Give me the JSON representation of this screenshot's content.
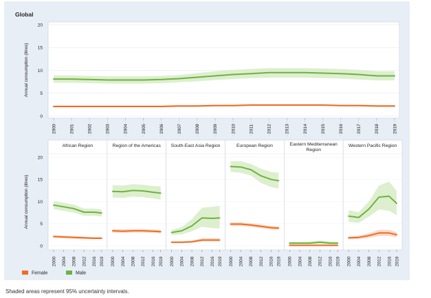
{
  "note": "Shaded areas represent 95% uncertainty intervals.",
  "legend": [
    {
      "label": "Female",
      "color": "#f26b22"
    },
    {
      "label": "Male",
      "color": "#6cb33f"
    }
  ],
  "colors": {
    "female": "#f26b22",
    "male": "#6cb33f",
    "female_band": "#fbd6c2",
    "male_band": "#d9edc9",
    "panel_bg": "#e8eef6",
    "plot_bg": "#ffffff"
  },
  "chart_data": [
    {
      "type": "line",
      "title": "Global",
      "ylabel": "Annual consumption (litres)",
      "ylim": [
        0,
        20
      ],
      "yticks": [
        0,
        5,
        10,
        15,
        20
      ],
      "x": [
        2000,
        2001,
        2002,
        2003,
        2004,
        2005,
        2006,
        2007,
        2008,
        2009,
        2010,
        2011,
        2012,
        2013,
        2014,
        2015,
        2016,
        2017,
        2018,
        2019
      ],
      "xticks": [
        2000,
        2001,
        2002,
        2003,
        2004,
        2005,
        2006,
        2007,
        2008,
        2009,
        2010,
        2011,
        2012,
        2013,
        2014,
        2015,
        2016,
        2017,
        2018,
        2019
      ],
      "series": [
        {
          "name": "Female",
          "values": [
            2.1,
            2.1,
            2.1,
            2.1,
            2.1,
            2.1,
            2.1,
            2.2,
            2.2,
            2.3,
            2.3,
            2.4,
            2.4,
            2.4,
            2.4,
            2.4,
            2.3,
            2.3,
            2.2,
            2.2
          ],
          "lower": [
            1.9,
            1.9,
            1.9,
            1.9,
            1.9,
            1.9,
            1.9,
            2.0,
            2.0,
            2.1,
            2.1,
            2.2,
            2.2,
            2.2,
            2.2,
            2.2,
            2.1,
            2.1,
            2.0,
            2.0
          ],
          "upper": [
            2.3,
            2.3,
            2.3,
            2.3,
            2.3,
            2.3,
            2.3,
            2.4,
            2.4,
            2.5,
            2.5,
            2.6,
            2.6,
            2.6,
            2.6,
            2.6,
            2.5,
            2.5,
            2.4,
            2.4
          ]
        },
        {
          "name": "Male",
          "values": [
            8.1,
            8.1,
            8.0,
            7.9,
            7.9,
            7.9,
            8.0,
            8.2,
            8.5,
            8.8,
            9.1,
            9.3,
            9.5,
            9.5,
            9.5,
            9.4,
            9.3,
            9.1,
            8.8,
            8.8
          ],
          "lower": [
            7.3,
            7.3,
            7.2,
            7.1,
            7.1,
            7.1,
            7.2,
            7.4,
            7.6,
            7.9,
            8.1,
            8.3,
            8.4,
            8.4,
            8.4,
            8.3,
            8.2,
            8.0,
            7.8,
            7.8
          ],
          "upper": [
            8.9,
            8.9,
            8.8,
            8.7,
            8.7,
            8.7,
            8.8,
            9.0,
            9.4,
            9.8,
            10.1,
            10.3,
            10.5,
            10.5,
            10.5,
            10.4,
            10.3,
            10.1,
            9.8,
            9.8
          ]
        }
      ]
    },
    {
      "type": "line",
      "ylabel": "Annual consumption (litres)",
      "ylim": [
        0,
        20
      ],
      "yticks": [
        0,
        5,
        10,
        15,
        20
      ],
      "x": [
        2000,
        2004,
        2008,
        2012,
        2016,
        2019
      ],
      "xticks": [
        2000,
        2004,
        2008,
        2012,
        2016,
        2019
      ],
      "panels": [
        {
          "title": "African Region",
          "series": [
            {
              "name": "Female",
              "values": [
                2.1,
                2.0,
                1.9,
                1.8,
                1.7,
                1.7
              ],
              "lower": [
                1.8,
                1.7,
                1.6,
                1.5,
                1.5,
                1.5
              ],
              "upper": [
                2.4,
                2.3,
                2.2,
                2.1,
                2.0,
                2.0
              ]
            },
            {
              "name": "Male",
              "values": [
                9.2,
                8.8,
                8.4,
                7.6,
                7.6,
                7.4
              ],
              "lower": [
                8.3,
                7.9,
                7.5,
                6.8,
                6.8,
                6.6
              ],
              "upper": [
                10.1,
                9.7,
                9.3,
                8.4,
                8.4,
                8.2
              ]
            }
          ]
        },
        {
          "title": "Region of the Americas",
          "series": [
            {
              "name": "Female",
              "values": [
                3.4,
                3.3,
                3.4,
                3.4,
                3.3,
                3.2
              ],
              "lower": [
                3.0,
                2.9,
                3.0,
                3.0,
                2.9,
                2.8
              ],
              "upper": [
                3.8,
                3.7,
                3.8,
                3.8,
                3.7,
                3.6
              ]
            },
            {
              "name": "Male",
              "values": [
                12.3,
                12.2,
                12.5,
                12.4,
                12.1,
                11.9
              ],
              "lower": [
                10.9,
                10.8,
                11.1,
                11.0,
                10.7,
                10.4
              ],
              "upper": [
                13.7,
                13.6,
                13.9,
                13.8,
                13.5,
                13.4
              ]
            }
          ]
        },
        {
          "title": "South-East Asia Region",
          "series": [
            {
              "name": "Female",
              "values": [
                0.8,
                0.8,
                0.9,
                1.3,
                1.3,
                1.3
              ],
              "lower": [
                0.6,
                0.6,
                0.7,
                1.0,
                1.0,
                1.0
              ],
              "upper": [
                1.0,
                1.0,
                1.2,
                1.7,
                1.7,
                1.7
              ]
            },
            {
              "name": "Male",
              "values": [
                3.0,
                3.4,
                4.5,
                6.3,
                6.2,
                6.3
              ],
              "lower": [
                2.4,
                2.6,
                3.3,
                4.3,
                4.0,
                3.9
              ],
              "upper": [
                3.6,
                4.2,
                6.0,
                8.6,
                8.8,
                9.0
              ]
            }
          ]
        },
        {
          "title": "European Region",
          "series": [
            {
              "name": "Female",
              "values": [
                4.9,
                4.9,
                4.7,
                4.4,
                4.1,
                4.0
              ],
              "lower": [
                4.5,
                4.5,
                4.3,
                4.0,
                3.7,
                3.6
              ],
              "upper": [
                5.3,
                5.3,
                5.1,
                4.8,
                4.5,
                4.4
              ]
            },
            {
              "name": "Male",
              "values": [
                17.9,
                17.8,
                17.2,
                15.8,
                15.0,
                14.7
              ],
              "lower": [
                16.7,
                16.5,
                15.9,
                14.2,
                13.3,
                12.9
              ],
              "upper": [
                19.1,
                19.1,
                18.5,
                17.4,
                16.7,
                16.5
              ]
            }
          ]
        },
        {
          "title": "Eastern Mediterranean Region",
          "series": [
            {
              "name": "Female",
              "values": [
                0.1,
                0.1,
                0.1,
                0.1,
                0.1,
                0.1
              ],
              "lower": [
                0.0,
                0.0,
                0.0,
                0.0,
                0.0,
                0.0
              ],
              "upper": [
                0.3,
                0.3,
                0.3,
                0.3,
                0.3,
                0.3
              ]
            },
            {
              "name": "Male",
              "values": [
                0.6,
                0.6,
                0.6,
                0.8,
                0.6,
                0.6
              ],
              "lower": [
                0.3,
                0.3,
                0.3,
                0.4,
                0.3,
                0.3
              ],
              "upper": [
                0.9,
                0.9,
                1.0,
                1.2,
                1.0,
                1.0
              ]
            }
          ]
        },
        {
          "title": "Western Pacific Region",
          "series": [
            {
              "name": "Female",
              "values": [
                1.8,
                1.9,
                2.3,
                2.9,
                2.9,
                2.5
              ],
              "lower": [
                1.5,
                1.5,
                1.8,
                2.2,
                2.2,
                1.9
              ],
              "upper": [
                2.1,
                2.3,
                2.8,
                3.6,
                3.6,
                3.1
              ]
            },
            {
              "name": "Male",
              "values": [
                6.7,
                6.4,
                8.3,
                11.0,
                11.2,
                9.6
              ],
              "lower": [
                5.4,
                5.2,
                6.6,
                8.2,
                7.9,
                6.9
              ],
              "upper": [
                8.0,
                7.6,
                10.0,
                13.6,
                14.5,
                12.4
              ]
            }
          ]
        }
      ]
    }
  ]
}
